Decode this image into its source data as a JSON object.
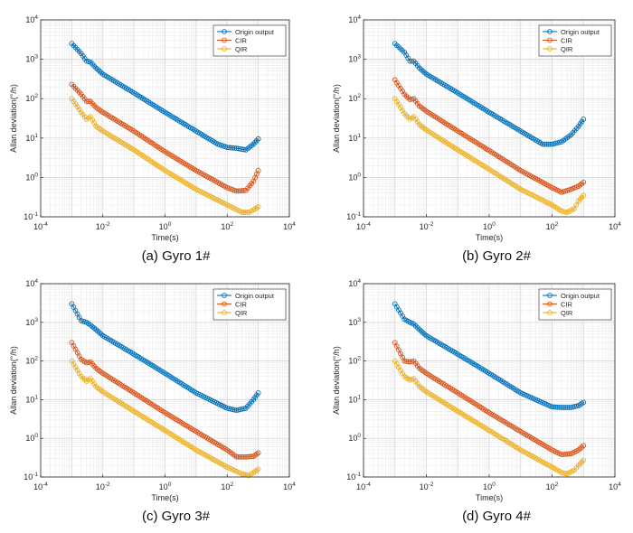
{
  "figure": {
    "panels": [
      {
        "caption": "(a) Gyro 1#"
      },
      {
        "caption": "(b) Gyro 2#"
      },
      {
        "caption": "(c) Gyro 3#"
      },
      {
        "caption": "(d) Gyro 4#"
      }
    ]
  },
  "colors": {
    "origin": "#0072BD",
    "cir": "#D95319",
    "qir": "#EDB120"
  },
  "chart_data": [
    {
      "type": "line",
      "title": "(a) Gyro 1#",
      "xlabel": "Time(s)",
      "ylabel": "Allan deviation(°/h)",
      "xscale": "log",
      "yscale": "log",
      "xlim": [
        0.0001,
        10000
      ],
      "ylim": [
        0.1,
        10000
      ],
      "xticks": [
        "10^-4",
        "10^-2",
        "10^0",
        "10^2",
        "10^4"
      ],
      "yticks": [
        "10^-1",
        "10^0",
        "10^1",
        "10^2",
        "10^3",
        "10^4"
      ],
      "grid": true,
      "legend_position": "top-right",
      "series": [
        {
          "name": "Origin output",
          "x": [
            0.001,
            0.002,
            0.003,
            0.004,
            0.006,
            0.01,
            0.1,
            1,
            10,
            50,
            100,
            200,
            400,
            700,
            1000
          ],
          "y": [
            2500,
            1400,
            900,
            850,
            600,
            420,
            140,
            45,
            15,
            7,
            5.8,
            5.5,
            5.0,
            7,
            9.5
          ]
        },
        {
          "name": "CIR",
          "x": [
            0.001,
            0.002,
            0.003,
            0.004,
            0.006,
            0.01,
            0.1,
            1,
            10,
            100,
            200,
            400,
            700,
            1000
          ],
          "y": [
            230,
            130,
            85,
            85,
            60,
            45,
            15,
            4.5,
            1.5,
            0.55,
            0.45,
            0.47,
            0.8,
            1.5
          ]
        },
        {
          "name": "QIR",
          "x": [
            0.001,
            0.002,
            0.003,
            0.004,
            0.006,
            0.01,
            0.1,
            1,
            10,
            100,
            300,
            500,
            700,
            1000
          ],
          "y": [
            100,
            45,
            30,
            35,
            20,
            15,
            5,
            1.5,
            0.5,
            0.2,
            0.13,
            0.13,
            0.15,
            0.18
          ]
        }
      ]
    },
    {
      "type": "line",
      "title": "(b) Gyro 2#",
      "xlabel": "Time(s)",
      "ylabel": "Allan deviation(°/h)",
      "xscale": "log",
      "yscale": "log",
      "xlim": [
        0.0001,
        10000
      ],
      "ylim": [
        0.1,
        10000
      ],
      "xticks": [
        "10^-4",
        "10^-2",
        "10^0",
        "10^2",
        "10^4"
      ],
      "yticks": [
        "10^-1",
        "10^0",
        "10^1",
        "10^2",
        "10^3",
        "10^4"
      ],
      "grid": true,
      "legend_position": "top-right",
      "series": [
        {
          "name": "Origin output",
          "x": [
            0.001,
            0.002,
            0.003,
            0.004,
            0.006,
            0.01,
            0.1,
            1,
            10,
            50,
            100,
            200,
            400,
            700,
            1000
          ],
          "y": [
            2500,
            1500,
            900,
            900,
            600,
            420,
            140,
            45,
            15,
            7,
            7,
            8,
            12,
            20,
            30
          ]
        },
        {
          "name": "CIR",
          "x": [
            0.001,
            0.002,
            0.003,
            0.004,
            0.006,
            0.01,
            0.1,
            1,
            10,
            100,
            200,
            400,
            700,
            1000
          ],
          "y": [
            300,
            130,
            95,
            100,
            65,
            48,
            15,
            4.8,
            1.5,
            0.55,
            0.42,
            0.5,
            0.6,
            0.75
          ]
        },
        {
          "name": "QIR",
          "x": [
            0.001,
            0.002,
            0.003,
            0.004,
            0.006,
            0.01,
            0.1,
            1,
            10,
            100,
            200,
            300,
            500,
            700,
            1000
          ],
          "y": [
            100,
            42,
            30,
            35,
            22,
            16,
            5,
            1.6,
            0.5,
            0.2,
            0.14,
            0.13,
            0.16,
            0.25,
            0.35
          ]
        }
      ]
    },
    {
      "type": "line",
      "title": "(c) Gyro 3#",
      "xlabel": "Time(s)",
      "ylabel": "Allan deviation(°/h)",
      "xscale": "log",
      "yscale": "log",
      "xlim": [
        0.0001,
        10000
      ],
      "ylim": [
        0.1,
        10000
      ],
      "xticks": [
        "10^-4",
        "10^-2",
        "10^0",
        "10^2",
        "10^4"
      ],
      "yticks": [
        "10^-1",
        "10^0",
        "10^1",
        "10^2",
        "10^3",
        "10^4"
      ],
      "grid": true,
      "legend_position": "top-right",
      "series": [
        {
          "name": "Origin output",
          "x": [
            0.001,
            0.002,
            0.003,
            0.004,
            0.006,
            0.01,
            0.1,
            1,
            10,
            100,
            200,
            400,
            700,
            1000
          ],
          "y": [
            3000,
            1100,
            1000,
            850,
            650,
            450,
            150,
            48,
            15,
            6,
            5.3,
            6,
            10,
            15
          ]
        },
        {
          "name": "CIR",
          "x": [
            0.001,
            0.002,
            0.003,
            0.004,
            0.006,
            0.01,
            0.1,
            1,
            10,
            100,
            200,
            400,
            700,
            1000
          ],
          "y": [
            300,
            110,
            90,
            95,
            65,
            48,
            15,
            4.6,
            1.5,
            0.5,
            0.33,
            0.33,
            0.34,
            0.42
          ]
        },
        {
          "name": "QIR",
          "x": [
            0.001,
            0.002,
            0.003,
            0.004,
            0.006,
            0.01,
            0.1,
            1,
            10,
            100,
            300,
            500,
            700,
            1000
          ],
          "y": [
            100,
            40,
            30,
            35,
            22,
            16,
            5,
            1.6,
            0.5,
            0.18,
            0.12,
            0.11,
            0.13,
            0.16
          ]
        }
      ]
    },
    {
      "type": "line",
      "title": "(d) Gyro 4#",
      "xlabel": "Time(s)",
      "ylabel": "Allan deviation(°/h)",
      "xscale": "log",
      "yscale": "log",
      "xlim": [
        0.0001,
        10000
      ],
      "ylim": [
        0.1,
        10000
      ],
      "xticks": [
        "10^-4",
        "10^-2",
        "10^0",
        "10^2",
        "10^4"
      ],
      "yticks": [
        "10^-1",
        "10^0",
        "10^1",
        "10^2",
        "10^3",
        "10^4"
      ],
      "grid": true,
      "legend_position": "top-right",
      "series": [
        {
          "name": "Origin output",
          "x": [
            0.001,
            0.002,
            0.003,
            0.004,
            0.006,
            0.01,
            0.1,
            1,
            10,
            100,
            200,
            400,
            700,
            1000
          ],
          "y": [
            3000,
            1200,
            1000,
            900,
            650,
            450,
            150,
            48,
            15,
            6.5,
            6.3,
            6.3,
            7,
            8.5
          ]
        },
        {
          "name": "CIR",
          "x": [
            0.001,
            0.002,
            0.003,
            0.004,
            0.006,
            0.01,
            0.1,
            1,
            10,
            100,
            200,
            400,
            700,
            1000
          ],
          "y": [
            300,
            100,
            95,
            100,
            65,
            48,
            15,
            4.6,
            1.5,
            0.5,
            0.38,
            0.4,
            0.5,
            0.65
          ]
        },
        {
          "name": "QIR",
          "x": [
            0.001,
            0.002,
            0.003,
            0.004,
            0.006,
            0.01,
            0.1,
            1,
            10,
            100,
            200,
            300,
            500,
            700,
            1000
          ],
          "y": [
            100,
            40,
            32,
            35,
            22,
            16,
            5,
            1.6,
            0.5,
            0.18,
            0.13,
            0.12,
            0.15,
            0.2,
            0.27
          ]
        }
      ]
    }
  ]
}
